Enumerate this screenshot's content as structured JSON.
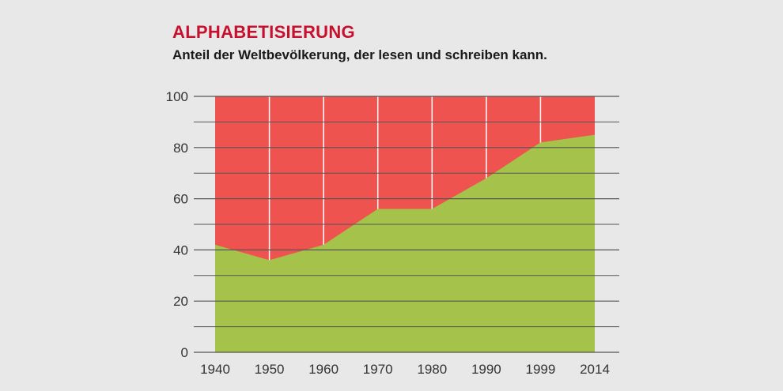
{
  "header": {
    "title": "ALPHABETISIERUNG",
    "subtitle": "Anteil der Weltbevölkerung, der lesen und schreiben kann."
  },
  "colors": {
    "title": "#c8102e",
    "illiterate_fill": "#ef5350",
    "literate_fill": "#a5c34a",
    "background": "#e8e8e8",
    "axis": "#555555",
    "grid": "#ffffff"
  },
  "chart_data": {
    "type": "area",
    "title": "ALPHABETISIERUNG",
    "subtitle": "Anteil der Weltbevölkerung, der lesen und schreiben kann.",
    "xlabel": "",
    "ylabel": "",
    "x": [
      1940,
      1950,
      1960,
      1970,
      1980,
      1990,
      1999,
      2014
    ],
    "x_tick_labels": [
      "1940",
      "1950",
      "1960",
      "1970",
      "1980",
      "1990",
      "1999",
      "2014"
    ],
    "series": [
      {
        "values": [
          42,
          36,
          42,
          56,
          56,
          68,
          82,
          85
        ],
        "color": "#a5c34a"
      }
    ],
    "ylim": [
      0,
      100
    ],
    "y_ticks": [
      0,
      20,
      40,
      60,
      80,
      100
    ],
    "y_minor_step": 10,
    "grid": true,
    "legend": "none"
  }
}
